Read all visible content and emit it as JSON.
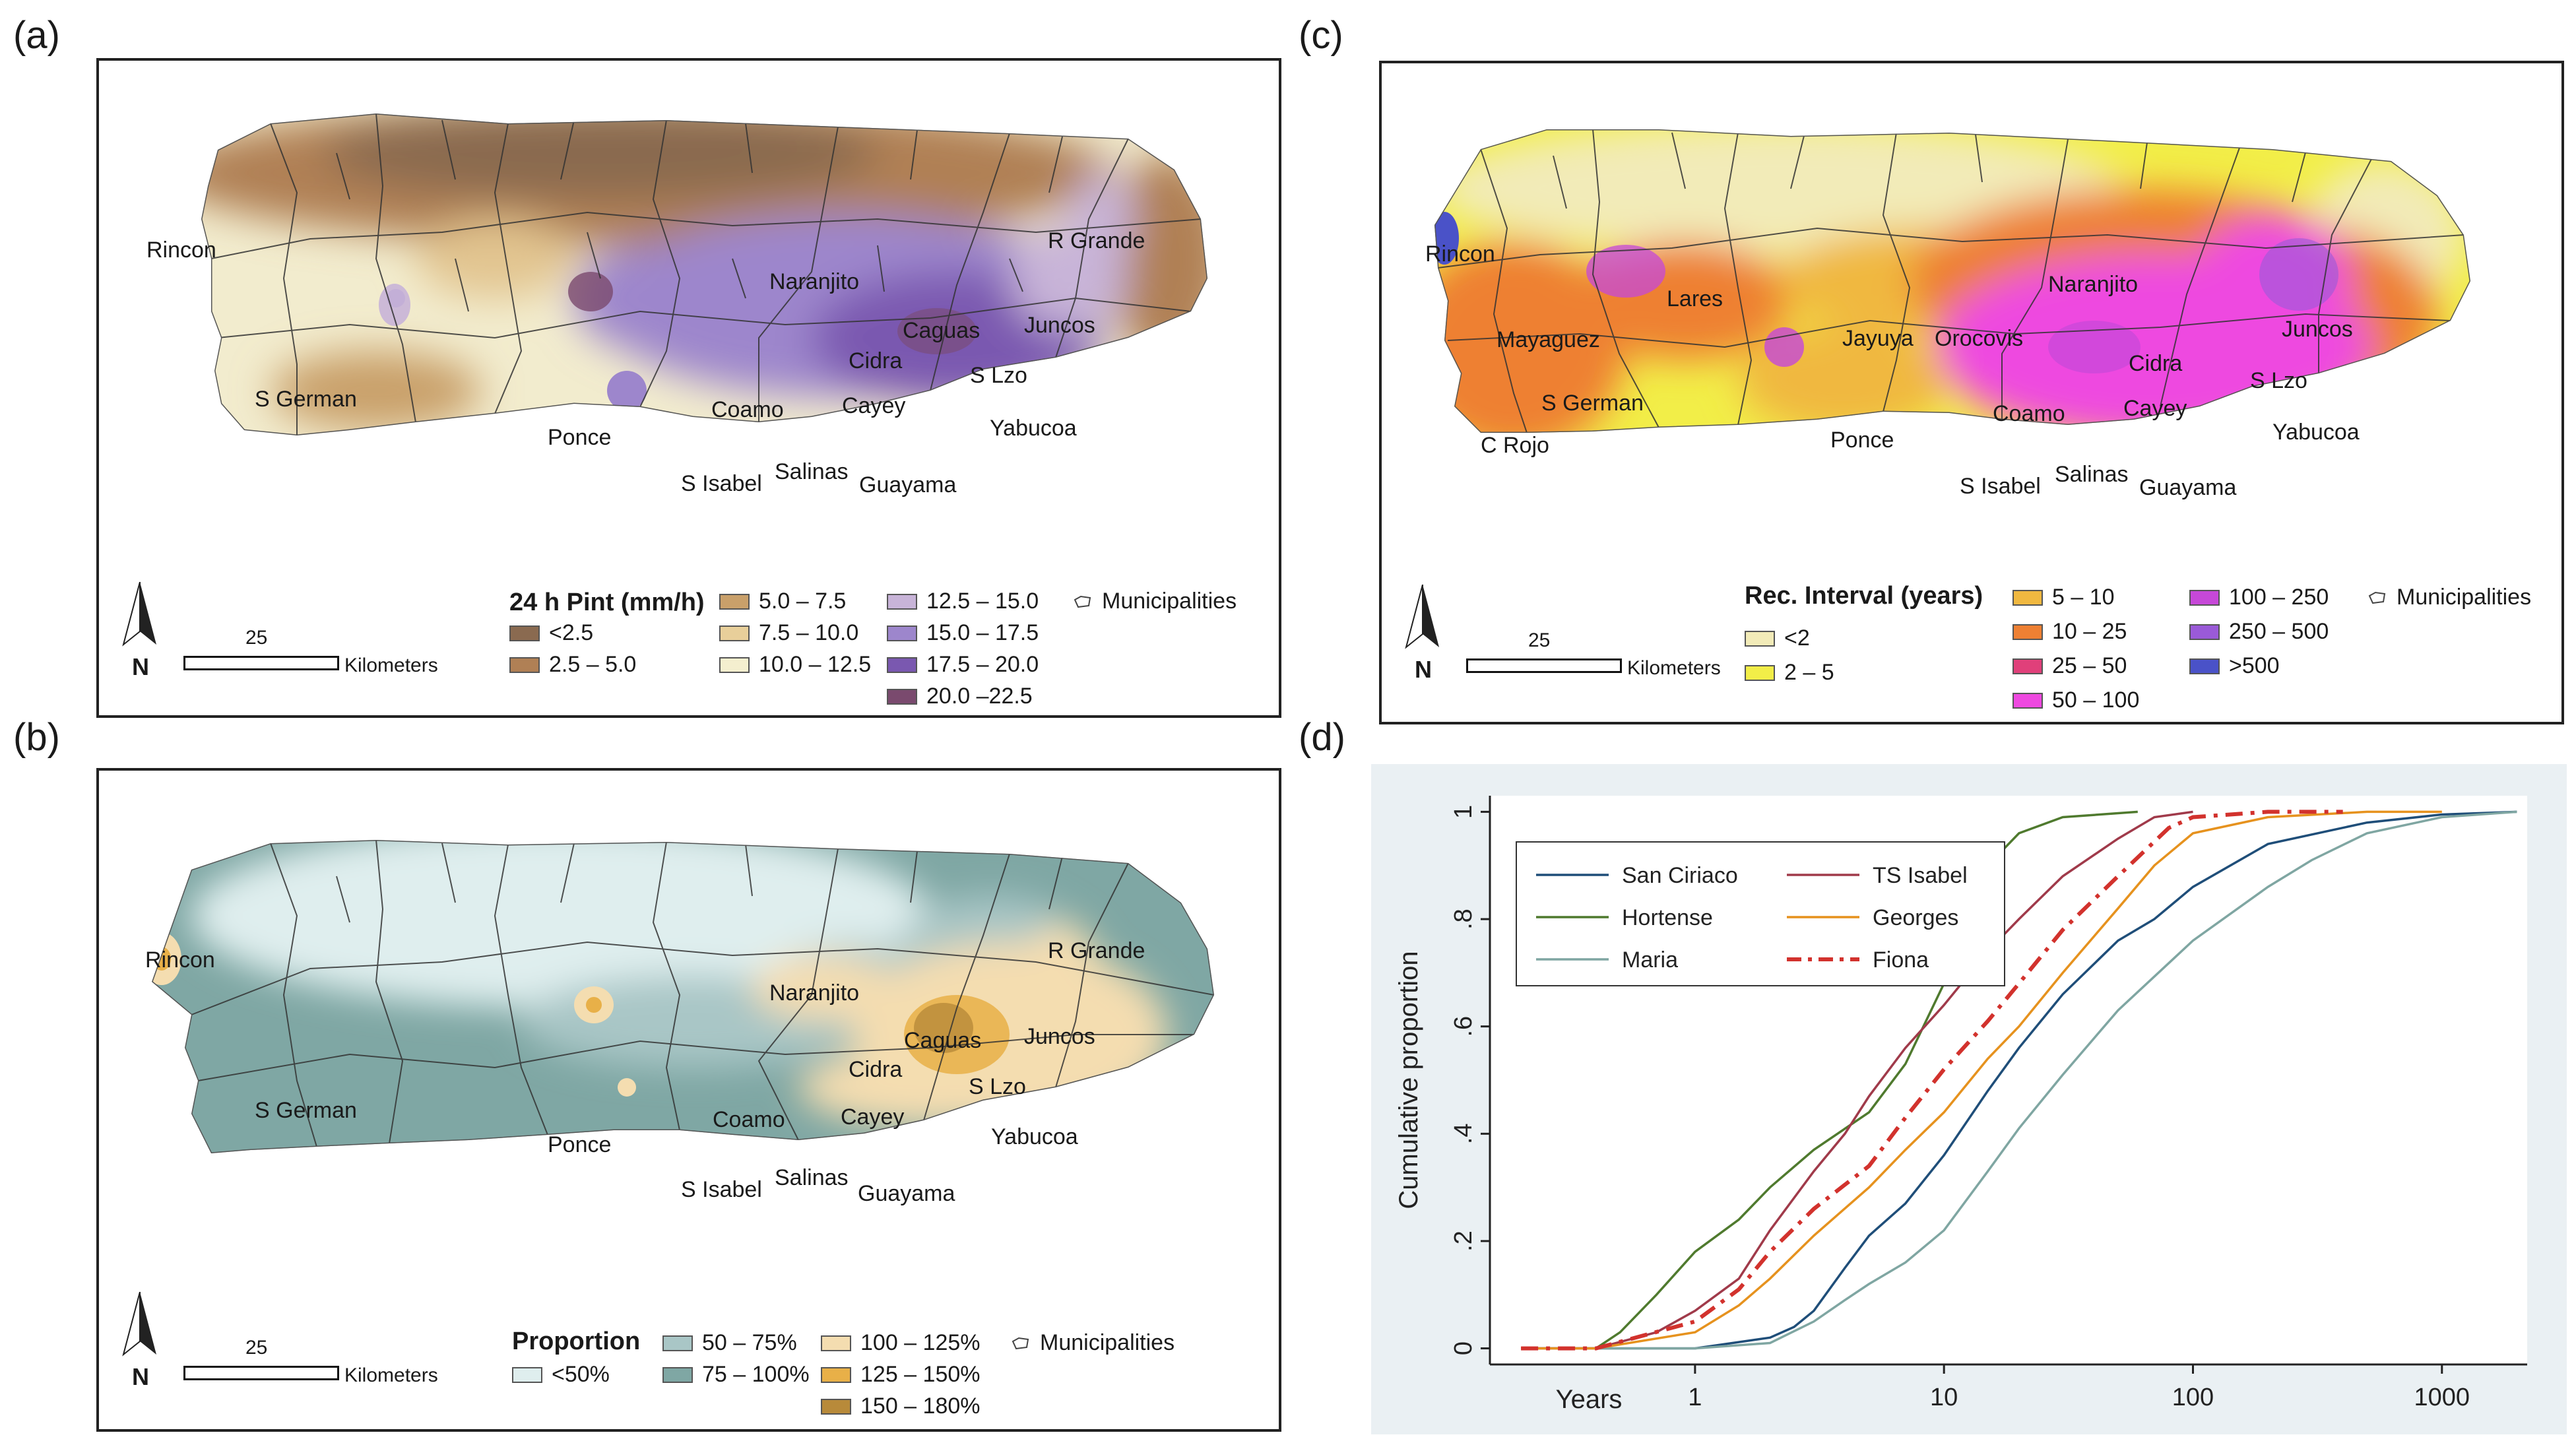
{
  "panel_labels": {
    "a": "(a)",
    "b": "(b)",
    "c": "(c)",
    "d": "(d)"
  },
  "towns_a": [
    "Rincon",
    "Naranjito",
    "R Grande",
    "Caguas",
    "Juncos",
    "Cidra",
    "S German",
    "Coamo",
    "Cayey",
    "S Lzo",
    "Ponce",
    "Yabucoa",
    "S Isabel",
    "Salinas",
    "Guayama"
  ],
  "towns_b": [
    "Rincon",
    "R Grande",
    "Naranjito",
    "Caguas",
    "Juncos",
    "Cidra",
    "S Lzo",
    "S German",
    "Cayey",
    "Ponce",
    "Coamo",
    "Yabucoa",
    "S Isabel",
    "Salinas",
    "Guayama"
  ],
  "towns_c": [
    "Rincon",
    "Lares",
    "Naranjito",
    "Mayaguez",
    "Jayuya",
    "Orocovis",
    "Juncos",
    "Cidra",
    "S German",
    "S Lzo",
    "Coamo",
    "Cayey",
    "Ponce",
    "Yabucoa",
    "C Rojo",
    "S Isabel",
    "Salinas",
    "Guayama"
  ],
  "legend_a": {
    "title": "24 h Pint (mm/h)",
    "items": [
      {
        "label": "<2.5",
        "color": "#8a6a50"
      },
      {
        "label": "2.5 – 5.0",
        "color": "#b08055"
      },
      {
        "label": "5.0 – 7.5",
        "color": "#c9a06a"
      },
      {
        "label": "7.5 – 10.0",
        "color": "#e8cf9a"
      },
      {
        "label": "10.0 – 12.5",
        "color": "#f4efcf"
      },
      {
        "label": "12.5 – 15.0",
        "color": "#c8b4d8"
      },
      {
        "label": "15.0 – 17.5",
        "color": "#9d86cc"
      },
      {
        "label": "17.5 – 20.0",
        "color": "#7a58b0"
      },
      {
        "label": "20.0 –22.5",
        "color": "#7a4a6e"
      }
    ],
    "municipalities": "Municipalities"
  },
  "legend_b": {
    "title": "Proportion",
    "items": [
      {
        "label": "<50%",
        "color": "#dfeeee"
      },
      {
        "label": "50 – 75%",
        "color": "#a9c6c6"
      },
      {
        "label": "75 – 100%",
        "color": "#7fa7a4"
      },
      {
        "label": "100 – 125%",
        "color": "#f4ddb0"
      },
      {
        "label": "125 – 150%",
        "color": "#e8b048"
      },
      {
        "label": "150 – 180%",
        "color": "#b88a3a"
      }
    ],
    "municipalities": "Municipalities"
  },
  "legend_c": {
    "title": "Rec. Interval (years)",
    "items": [
      {
        "label": "<2",
        "color": "#f2ebb8"
      },
      {
        "label": "2 – 5",
        "color": "#f2ee48"
      },
      {
        "label": "5 – 10",
        "color": "#f0b840"
      },
      {
        "label": "10 – 25",
        "color": "#ee8033"
      },
      {
        "label": "25 – 50",
        "color": "#e0407a"
      },
      {
        "label": "50 – 100",
        "color": "#ee48e0"
      },
      {
        "label": "100 – 250",
        "color": "#c648d8"
      },
      {
        "label": "250 – 500",
        "color": "#9a5ad8"
      },
      {
        "label": ">500",
        "color": "#4a52c8"
      }
    ],
    "municipalities": "Municipalities"
  },
  "scale": {
    "value": "25",
    "unit": "Kilometers",
    "north": "N"
  },
  "chart_data": {
    "type": "line",
    "title": "",
    "xlabel": "Years",
    "ylabel": "Cumulative proportion",
    "xscale": "log",
    "xlim": [
      0.15,
      2200
    ],
    "ylim": [
      -0.03,
      1.03
    ],
    "xticks": [
      1,
      10,
      100,
      1000
    ],
    "xtick_labels": [
      "1",
      "10",
      "100",
      "1000"
    ],
    "yticks": [
      0,
      0.2,
      0.4,
      0.6,
      0.8,
      1
    ],
    "ytick_labels": [
      "0",
      ".2",
      ".4",
      ".6",
      ".8",
      "1"
    ],
    "legend_position": "top-left",
    "series": [
      {
        "name": "San Ciriaco",
        "color": "#1f4e79",
        "dash": "solid",
        "x": [
          0.2,
          0.4,
          1,
          2,
          2.5,
          3,
          4,
          5,
          7,
          10,
          15,
          20,
          30,
          50,
          70,
          100,
          200,
          500,
          1000,
          2000
        ],
        "y": [
          0,
          0,
          0,
          0.02,
          0.04,
          0.07,
          0.15,
          0.21,
          0.27,
          0.36,
          0.48,
          0.56,
          0.66,
          0.76,
          0.8,
          0.86,
          0.94,
          0.98,
          0.995,
          1
        ]
      },
      {
        "name": "Hortense",
        "color": "#4f7a2e",
        "dash": "solid",
        "x": [
          0.2,
          0.4,
          0.5,
          0.7,
          1,
          1.5,
          2,
          3,
          5,
          7,
          10,
          12,
          15,
          20,
          30,
          60
        ],
        "y": [
          0,
          0,
          0.03,
          0.1,
          0.18,
          0.24,
          0.3,
          0.37,
          0.44,
          0.53,
          0.68,
          0.8,
          0.9,
          0.96,
          0.99,
          1
        ]
      },
      {
        "name": "Maria",
        "color": "#7fa6a2",
        "dash": "solid",
        "x": [
          0.2,
          0.4,
          1,
          2,
          3,
          4,
          5,
          7,
          10,
          15,
          20,
          30,
          50,
          100,
          200,
          300,
          500,
          1000,
          2000
        ],
        "y": [
          0,
          0,
          0,
          0.01,
          0.05,
          0.09,
          0.12,
          0.16,
          0.22,
          0.33,
          0.41,
          0.51,
          0.63,
          0.76,
          0.86,
          0.91,
          0.96,
          0.99,
          1
        ]
      },
      {
        "name": "TS Isabel",
        "color": "#a03a4a",
        "dash": "solid",
        "x": [
          0.2,
          0.4,
          0.7,
          1,
          1.5,
          2,
          3,
          4,
          5,
          7,
          10,
          15,
          20,
          30,
          50,
          70,
          100
        ],
        "y": [
          0,
          0,
          0.03,
          0.07,
          0.13,
          0.22,
          0.33,
          0.4,
          0.47,
          0.56,
          0.64,
          0.74,
          0.8,
          0.88,
          0.95,
          0.99,
          1
        ]
      },
      {
        "name": "Georges",
        "color": "#e6921e",
        "dash": "solid",
        "x": [
          0.2,
          0.4,
          1,
          1.5,
          2,
          3,
          5,
          7,
          10,
          15,
          20,
          30,
          50,
          70,
          100,
          200,
          500,
          1000
        ],
        "y": [
          0,
          0,
          0.03,
          0.08,
          0.13,
          0.21,
          0.3,
          0.37,
          0.44,
          0.54,
          0.6,
          0.7,
          0.82,
          0.9,
          0.96,
          0.99,
          1,
          1
        ]
      },
      {
        "name": "Fiona",
        "color": "#d2322d",
        "dash": "dashdot",
        "x": [
          0.2,
          0.4,
          1,
          1.5,
          2,
          3,
          5,
          7,
          10,
          15,
          20,
          30,
          50,
          80,
          100,
          200,
          400
        ],
        "y": [
          0,
          0,
          0.05,
          0.11,
          0.18,
          0.26,
          0.34,
          0.43,
          0.52,
          0.61,
          0.68,
          0.78,
          0.88,
          0.97,
          0.99,
          1,
          1
        ]
      }
    ]
  }
}
